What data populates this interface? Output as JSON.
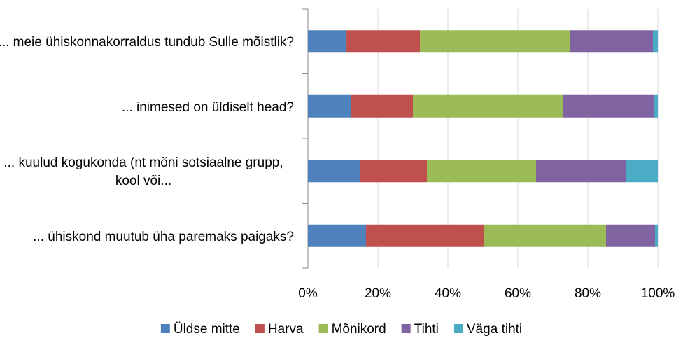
{
  "chart_data": {
    "type": "stacked-barh",
    "categories": [
      "... meie ühiskonnakorraldus tundub Sulle mõistlik?",
      "... inimesed on üldiselt head?",
      "... kuulud kogukonda (nt mõni sotsiaalne grupp, kool või...",
      "... ühiskond muutub üha paremaks paigaks?"
    ],
    "series": [
      {
        "name": "Üldse mitte",
        "color": "#4f81bd",
        "values": [
          10.8,
          12.2,
          15,
          16.6
        ]
      },
      {
        "name": "Harva",
        "color": "#c0504d",
        "values": [
          21.2,
          17.8,
          19,
          33.6
        ]
      },
      {
        "name": "Mõnikord",
        "color": "#9bbb59",
        "values": [
          43,
          43,
          31.2,
          35
        ]
      },
      {
        "name": "Tihti",
        "color": "#8064a2",
        "values": [
          23.6,
          25.8,
          25.8,
          14
        ]
      },
      {
        "name": "Väga tihti",
        "color": "#4bacc6",
        "values": [
          1.4,
          1.2,
          9,
          0.8
        ]
      }
    ],
    "xlim": [
      0,
      100
    ],
    "xticks": [
      {
        "value": 0,
        "label": "0%"
      },
      {
        "value": 20,
        "label": "20%"
      },
      {
        "value": 40,
        "label": "40%"
      },
      {
        "value": 60,
        "label": "60%"
      },
      {
        "value": 80,
        "label": "80%"
      },
      {
        "value": 100,
        "label": "100%"
      }
    ],
    "grid": true,
    "legend": "bottom"
  }
}
